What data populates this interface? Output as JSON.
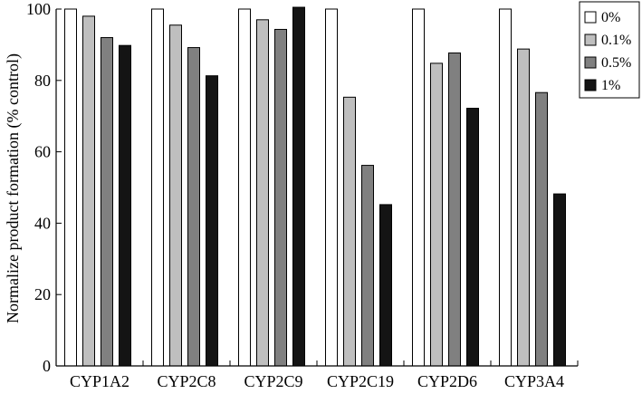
{
  "chart_data": {
    "type": "bar",
    "title": "",
    "xlabel": "",
    "ylabel": "Normalize product formation (% control)",
    "ylim": [
      0,
      100
    ],
    "yticks": [
      0,
      20,
      40,
      60,
      80,
      100
    ],
    "grid": false,
    "legend_position": "top-right",
    "categories": [
      "CYP1A2",
      "CYP2C8",
      "CYP2C9",
      "CYP2C19",
      "CYP2D6",
      "CYP3A4"
    ],
    "series": [
      {
        "name": "0%",
        "color": "#ffffff",
        "values": [
          100,
          100,
          100,
          100,
          100,
          100
        ]
      },
      {
        "name": "0.1%",
        "color": "#bfbfbf",
        "values": [
          98,
          95.5,
          97,
          75.3,
          84.8,
          88.8
        ]
      },
      {
        "name": "0.5%",
        "color": "#808080",
        "values": [
          92,
          89.2,
          94.3,
          56.2,
          87.7,
          76.6
        ]
      },
      {
        "name": "1%",
        "color": "#141414",
        "values": [
          89.8,
          81.3,
          100.6,
          45.2,
          72.2,
          48.2
        ]
      }
    ]
  }
}
